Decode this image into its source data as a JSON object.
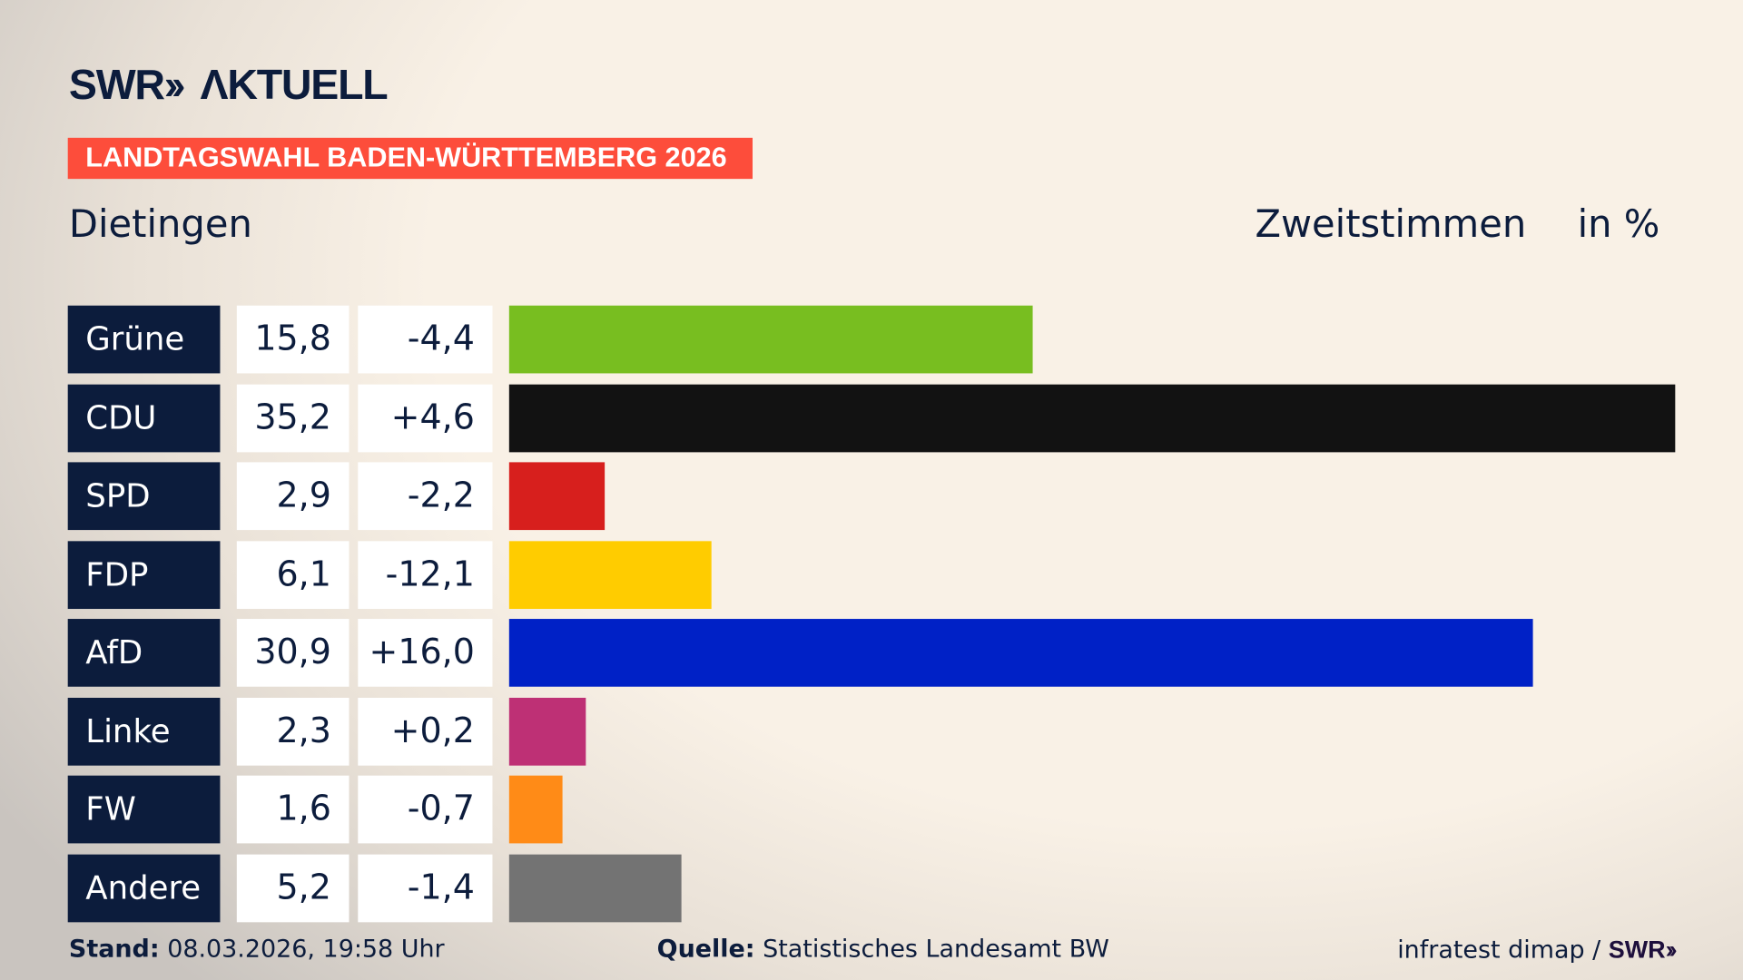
{
  "logo": {
    "text": "SWR» AKTUELL"
  },
  "banner": "LANDTAGSWAHL BADEN-WÜRTTEMBERG 2026",
  "region": "Dietingen",
  "measure": "Zweitstimmen",
  "unit": "in %",
  "chart_data": {
    "type": "bar",
    "orientation": "horizontal",
    "categories": [
      "Grüne",
      "CDU",
      "SPD",
      "FDP",
      "AfD",
      "Linke",
      "FW",
      "Andere"
    ],
    "values": [
      15.8,
      35.2,
      2.9,
      6.1,
      30.9,
      2.3,
      1.6,
      5.2
    ],
    "value_labels": [
      "15,8",
      "35,2",
      "2,9",
      "6,1",
      "30,9",
      "2,3",
      "1,6",
      "5,2"
    ],
    "changes": [
      -4.4,
      4.6,
      -2.2,
      -12.1,
      16.0,
      0.2,
      -0.7,
      -1.4
    ],
    "change_labels": [
      "-4,4",
      "+4,6",
      "-2,2",
      "-12,1",
      "+16,0",
      "+0,2",
      "-0,7",
      "-1,4"
    ],
    "colors": [
      "#78be20",
      "#121212",
      "#d71f1d",
      "#ffcc00",
      "#0021c6",
      "#be3075",
      "#ff8b17",
      "#737373"
    ],
    "xlim": [
      0,
      35.2
    ],
    "grid": false
  },
  "footer": {
    "stand_label": "Stand:",
    "stand_value": "08.03.2026, 19:58 Uhr",
    "source_label": "Quelle:",
    "source_value": "Statistisches Landesamt BW",
    "credit": "infratest dimap / ",
    "credit_logo": "SWR»"
  }
}
